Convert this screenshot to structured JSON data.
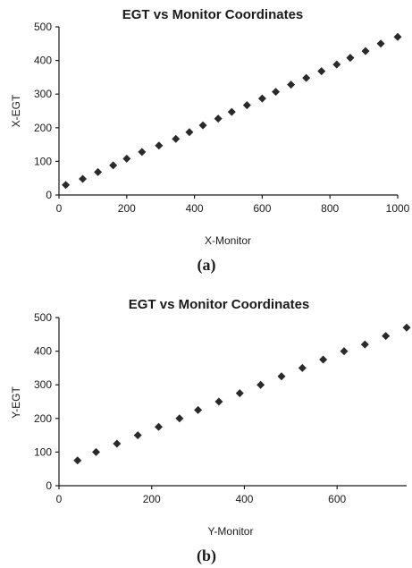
{
  "chart_data": [
    {
      "type": "scatter",
      "panel_caption": "(a)",
      "title": "EGT vs Monitor Coordinates",
      "xlabel": "X-Monitor",
      "ylabel": "X-EGT",
      "xlim": [
        0,
        1000
      ],
      "ylim": [
        0,
        500
      ],
      "xticks": [
        "0",
        "200",
        "400",
        "600",
        "800",
        "1000"
      ],
      "yticks": [
        "0",
        "100",
        "200",
        "300",
        "400",
        "500"
      ],
      "marker_color": "#2a2a2a",
      "grid": false,
      "legend": "none",
      "series": [
        {
          "x": [
            20,
            70,
            115,
            160,
            200,
            245,
            295,
            345,
            385,
            425,
            470,
            510,
            555,
            600,
            640,
            685,
            730,
            775,
            820,
            860,
            905,
            950,
            1000
          ],
          "y": [
            30,
            48,
            68,
            88,
            108,
            128,
            147,
            167,
            187,
            207,
            227,
            247,
            267,
            287,
            307,
            328,
            348,
            368,
            388,
            408,
            428,
            450,
            470
          ]
        }
      ]
    },
    {
      "type": "scatter",
      "panel_caption": "(b)",
      "title": "EGT vs Monitor Coordinates",
      "xlabel": "Y-Monitor",
      "ylabel": "Y-EGT",
      "xlim": [
        0,
        750
      ],
      "ylim": [
        0,
        500
      ],
      "xticks": [
        "0",
        "200",
        "400",
        "600"
      ],
      "yticks": [
        "0",
        "100",
        "200",
        "300",
        "400",
        "500"
      ],
      "marker_color": "#2a2a2a",
      "grid": false,
      "legend": "none",
      "series": [
        {
          "x": [
            40,
            80,
            125,
            170,
            215,
            260,
            300,
            345,
            390,
            435,
            480,
            525,
            570,
            615,
            660,
            705,
            750
          ],
          "y": [
            75,
            100,
            125,
            150,
            175,
            200,
            225,
            250,
            275,
            300,
            325,
            350,
            375,
            400,
            420,
            445,
            470
          ]
        }
      ]
    }
  ]
}
